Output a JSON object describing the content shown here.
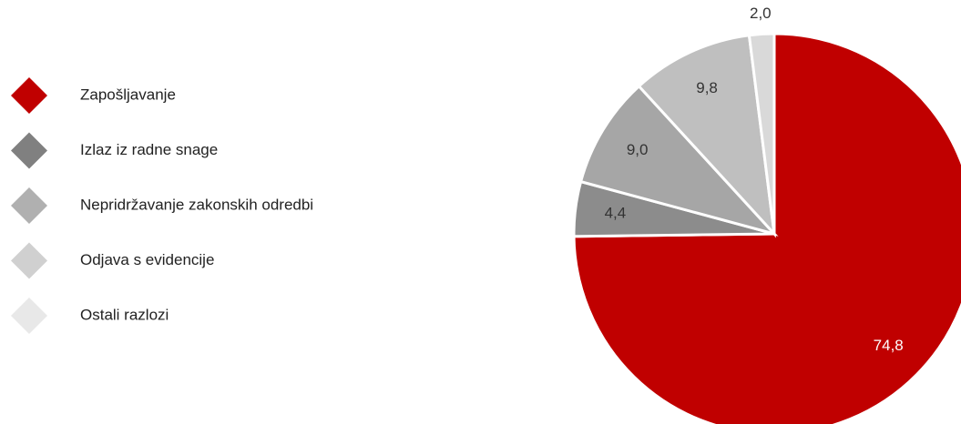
{
  "chart_data": {
    "type": "pie",
    "categories": [
      "Zapošljavanje",
      "Izlaz iz radne snage",
      "Nepridržavanje zakonskih odredbi",
      "Odjava s evidencije",
      "Ostali razlozi"
    ],
    "values": [
      74.8,
      4.4,
      9.0,
      9.8,
      2.0
    ],
    "value_labels": [
      "74,8",
      "4,4",
      "9,0",
      "9,8",
      "2,0"
    ],
    "colors": [
      "#c00000",
      "#8c8c8c",
      "#a6a6a6",
      "#bfbfbf",
      "#d9d9d9"
    ],
    "legend": "left"
  }
}
